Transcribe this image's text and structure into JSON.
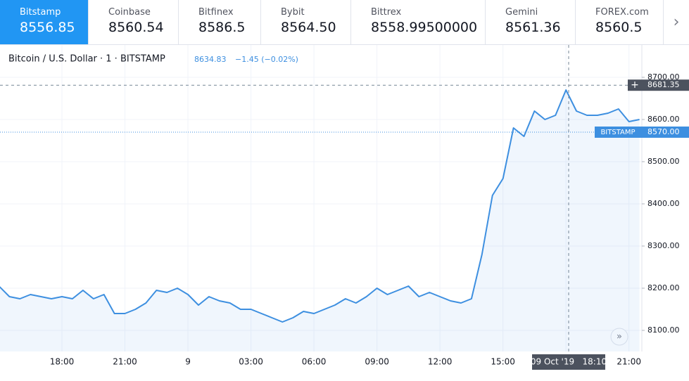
{
  "tabs": [
    {
      "name": "Bitstamp",
      "price": "8556.85"
    },
    {
      "name": "Coinbase",
      "price": "8560.54"
    },
    {
      "name": "Bitfinex",
      "price": "8586.5"
    },
    {
      "name": "Bybit",
      "price": "8564.50"
    },
    {
      "name": "Bittrex",
      "price": "8558.99500000"
    },
    {
      "name": "Gemini",
      "price": "8561.36"
    },
    {
      "name": "FOREX.com",
      "price": "8560.5"
    }
  ],
  "chart_data": {
    "type": "line",
    "title": "Bitcoin / U.S. Dollar · 1 · BITSTAMP",
    "last_price": "8634.83",
    "change": "−1.45 (−0.02%)",
    "categories": [
      null,
      null,
      null,
      null,
      null,
      null,
      "18:00",
      null,
      null,
      null,
      null,
      null,
      "21:00",
      null,
      null,
      null,
      null,
      null,
      "9",
      null,
      null,
      null,
      null,
      null,
      "03:00",
      null,
      null,
      null,
      null,
      null,
      "06:00",
      null,
      null,
      null,
      null,
      null,
      "09:00",
      null,
      null,
      null,
      null,
      null,
      "12:00",
      null,
      null,
      null,
      null,
      null,
      "15:00",
      null,
      null,
      null,
      null,
      null,
      null,
      null,
      null,
      null,
      null,
      null,
      "21:00",
      null
    ],
    "series": [
      {
        "name": "BITSTAMP",
        "color": "#3d8fe0",
        "values": [
          8205,
          8180,
          8175,
          8185,
          8180,
          8175,
          8180,
          8175,
          8195,
          8175,
          8185,
          8140,
          8140,
          8150,
          8165,
          8195,
          8190,
          8200,
          8185,
          8160,
          8180,
          8170,
          8165,
          8150,
          8150,
          8140,
          8130,
          8120,
          8130,
          8145,
          8140,
          8150,
          8160,
          8175,
          8165,
          8180,
          8200,
          8185,
          8195,
          8205,
          8180,
          8190,
          8180,
          8170,
          8165,
          8175,
          8280,
          8420,
          8460,
          8580,
          8560,
          8620,
          8600,
          8610,
          8670,
          8620,
          8610,
          8610,
          8615,
          8625,
          8595,
          8600
        ]
      }
    ],
    "ylim": [
      8050,
      8775
    ],
    "yticks": [
      {
        "value": 8100,
        "label": "8100.00"
      },
      {
        "value": 8200,
        "label": "8200.00"
      },
      {
        "value": 8300,
        "label": "8300.00"
      },
      {
        "value": 8400,
        "label": "8400.00"
      },
      {
        "value": 8500,
        "label": "8500.00"
      },
      {
        "value": 8600,
        "label": "8600.00"
      },
      {
        "value": 8700,
        "label": "8700.00"
      }
    ],
    "grid": true,
    "price_line": {
      "value": 8570,
      "label": "8570.00"
    },
    "crosshair": {
      "value": 8681.35,
      "time_label": "09 Oct '19   18:10"
    }
  }
}
